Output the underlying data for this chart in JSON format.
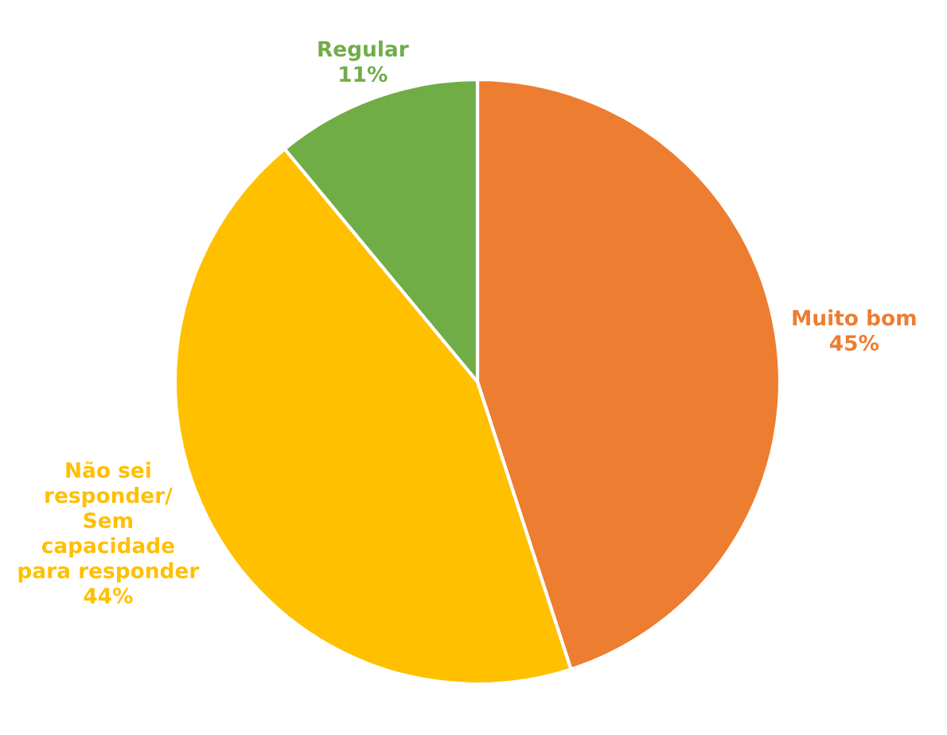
{
  "chart_data": {
    "type": "pie",
    "categories": [
      "Muito bom",
      "Não sei\nresponder/\nSem\ncapacidade\npara responder",
      "Regular"
    ],
    "values": [
      45,
      44,
      11
    ],
    "colors": [
      "#ed7d31",
      "#ffc000",
      "#70ad47"
    ],
    "value_labels": [
      "45%",
      "44%",
      "11%"
    ]
  }
}
